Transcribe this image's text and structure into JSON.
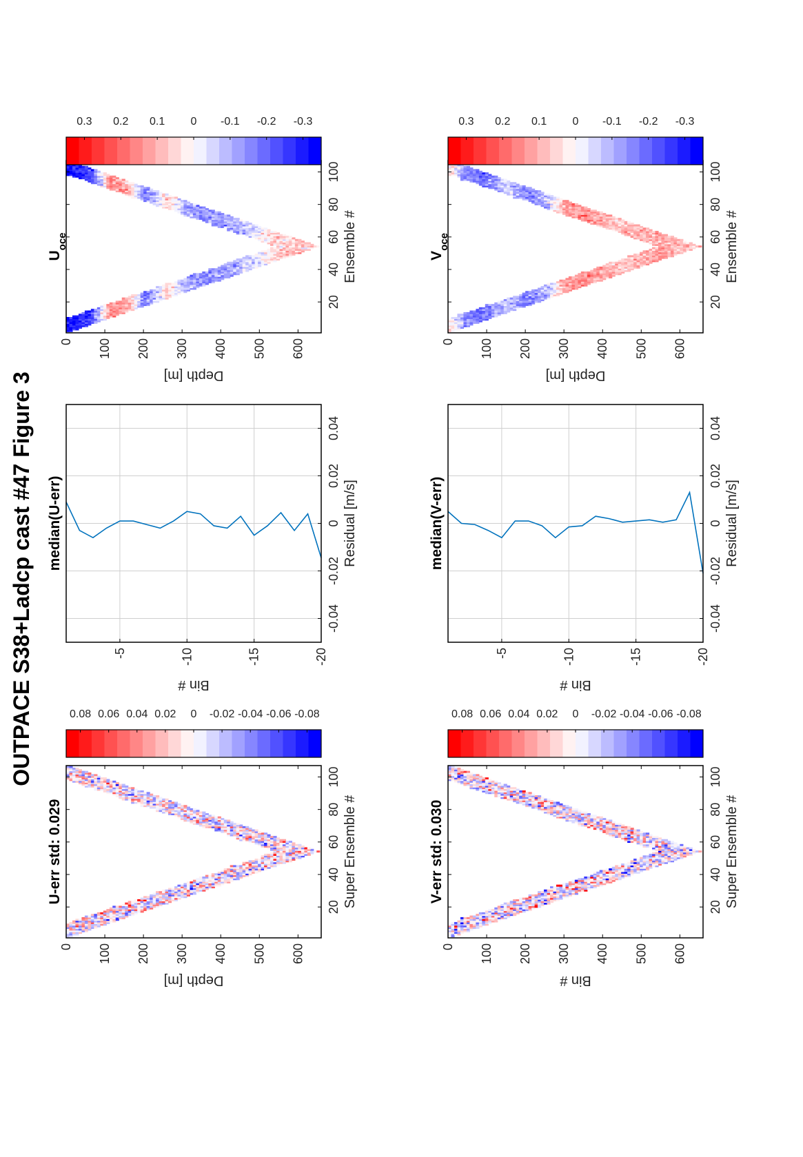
{
  "figure": {
    "title": "OUTPACE S38+Ladcp cast #47  Figure 3"
  },
  "colors": {
    "positive": "#ff0000",
    "negative": "#0000ff",
    "zero": "#ffffff",
    "line": "#0072bd"
  },
  "chart_data": [
    {
      "type": "heatmap",
      "title": "U-err std: 0.029",
      "xlabel": "Super Ensemble #",
      "ylabel": "Depth [m]",
      "xlim": [
        1,
        107
      ],
      "ylim": [
        0,
        660
      ],
      "xticks": [
        20,
        40,
        60,
        80,
        100
      ],
      "yticks": [
        0,
        100,
        200,
        300,
        400,
        500,
        600
      ],
      "clim": [
        -0.09,
        0.09
      ],
      "cticks": [
        0.08,
        0.06,
        0.04,
        0.02,
        0,
        -0.02,
        -0.04,
        -0.06,
        -0.08
      ],
      "ncolors": 20,
      "profile": {
        "turn_x": 54,
        "max_depth": 650,
        "band_width": 95
      },
      "std": 0.029,
      "seed": 11,
      "field_scale": 0.03
    },
    {
      "type": "line",
      "title": "median(U-err)",
      "xlabel": "Residual [m/s]",
      "ylabel": "Bin #",
      "xlim": [
        -0.05,
        0.05
      ],
      "ylim": [
        -20,
        -1
      ],
      "xticks": [
        -0.04,
        -0.02,
        0,
        0.02,
        0.04
      ],
      "yticks": [
        -5,
        -10,
        -15,
        -20
      ],
      "grid": true,
      "bins": [
        -1,
        -2,
        -3,
        -4,
        -5,
        -6,
        -7,
        -8,
        -9,
        -10,
        -11,
        -12,
        -13,
        -14,
        -15,
        -16,
        -17,
        -18,
        -19,
        -20
      ],
      "values": [
        0.009,
        -0.003,
        -0.006,
        -0.002,
        0.001,
        0.001,
        -0.0005,
        -0.002,
        0.001,
        0.005,
        0.004,
        -0.001,
        -0.002,
        0.003,
        -0.005,
        -0.001,
        0.0045,
        -0.003,
        0.004,
        -0.0145
      ]
    },
    {
      "type": "heatmap",
      "title": "U",
      "title_sub": "oce",
      "xlabel": "Ensemble #",
      "ylabel": "Depth [m]",
      "xlim": [
        1,
        107
      ],
      "ylim": [
        0,
        660
      ],
      "xticks": [
        20,
        40,
        60,
        80,
        100
      ],
      "yticks": [
        0,
        100,
        200,
        300,
        400,
        500,
        600
      ],
      "clim": [
        -0.35,
        0.35
      ],
      "cticks": [
        0.3,
        0.2,
        0.1,
        0,
        -0.1,
        -0.2,
        -0.3
      ],
      "ncolors": 20,
      "profile": {
        "turn_x": 54,
        "max_depth": 650,
        "band_width": 95
      },
      "depth_profile": [
        [
          0,
          -0.32
        ],
        [
          60,
          -0.25
        ],
        [
          110,
          0.15
        ],
        [
          160,
          0.1
        ],
        [
          200,
          -0.18
        ],
        [
          260,
          0.05
        ],
        [
          310,
          -0.12
        ],
        [
          360,
          -0.15
        ],
        [
          420,
          -0.12
        ],
        [
          480,
          -0.05
        ],
        [
          540,
          0.05
        ],
        [
          600,
          0.07
        ],
        [
          650,
          0.05
        ]
      ],
      "seed": 23,
      "field_scale": 0.04
    },
    {
      "type": "heatmap",
      "title": "V-err std: 0.030",
      "xlabel": "Super Ensemble #",
      "ylabel": "Bin #",
      "xlim": [
        1,
        107
      ],
      "ylim": [
        0,
        660
      ],
      "xticks": [
        20,
        40,
        60,
        80,
        100
      ],
      "yticks": [
        0,
        100,
        200,
        300,
        400,
        500,
        600
      ],
      "clim": [
        -0.09,
        0.09
      ],
      "cticks": [
        0.08,
        0.06,
        0.04,
        0.02,
        0,
        -0.02,
        -0.04,
        -0.06,
        -0.08
      ],
      "ncolors": 20,
      "profile": {
        "turn_x": 54,
        "max_depth": 650,
        "band_width": 95
      },
      "std": 0.03,
      "seed": 37,
      "field_scale": 0.03
    },
    {
      "type": "line",
      "title": "median(V-err)",
      "xlabel": "Residual [m/s]",
      "ylabel": "Bin #",
      "xlim": [
        -0.05,
        0.05
      ],
      "ylim": [
        -20,
        -1
      ],
      "xticks": [
        -0.04,
        -0.02,
        0,
        0.02,
        0.04
      ],
      "yticks": [
        -5,
        -10,
        -15,
        -20
      ],
      "grid": true,
      "bins": [
        -1,
        -2,
        -3,
        -4,
        -5,
        -6,
        -7,
        -8,
        -9,
        -10,
        -11,
        -12,
        -13,
        -14,
        -15,
        -16,
        -17,
        -18,
        -19,
        -20
      ],
      "values": [
        0.005,
        0,
        -0.0005,
        -0.003,
        -0.006,
        0.001,
        0.001,
        -0.001,
        -0.006,
        -0.0015,
        -0.001,
        0.003,
        0.002,
        0.0005,
        0.001,
        0.0015,
        0.0005,
        0.0015,
        0.013,
        -0.021
      ]
    },
    {
      "type": "heatmap",
      "title": "V",
      "title_sub": "oce",
      "xlabel": "Ensemble #",
      "ylabel": "Depth [m]",
      "xlim": [
        1,
        107
      ],
      "ylim": [
        0,
        660
      ],
      "xticks": [
        20,
        40,
        60,
        80,
        100
      ],
      "yticks": [
        0,
        100,
        200,
        300,
        400,
        500,
        600
      ],
      "clim": [
        -0.35,
        0.35
      ],
      "cticks": [
        0.3,
        0.2,
        0.1,
        0,
        -0.1,
        -0.2,
        -0.3
      ],
      "ncolors": 20,
      "profile": {
        "turn_x": 54,
        "max_depth": 650,
        "band_width": 95
      },
      "depth_profile": [
        [
          0,
          0.05
        ],
        [
          40,
          -0.15
        ],
        [
          90,
          -0.2
        ],
        [
          150,
          -0.05
        ],
        [
          200,
          -0.18
        ],
        [
          250,
          -0.1
        ],
        [
          300,
          0.12
        ],
        [
          360,
          0.14
        ],
        [
          420,
          0.08
        ],
        [
          480,
          0.08
        ],
        [
          540,
          0.12
        ],
        [
          600,
          0.1
        ],
        [
          650,
          0.08
        ]
      ],
      "seed": 51,
      "field_scale": 0.04
    }
  ]
}
